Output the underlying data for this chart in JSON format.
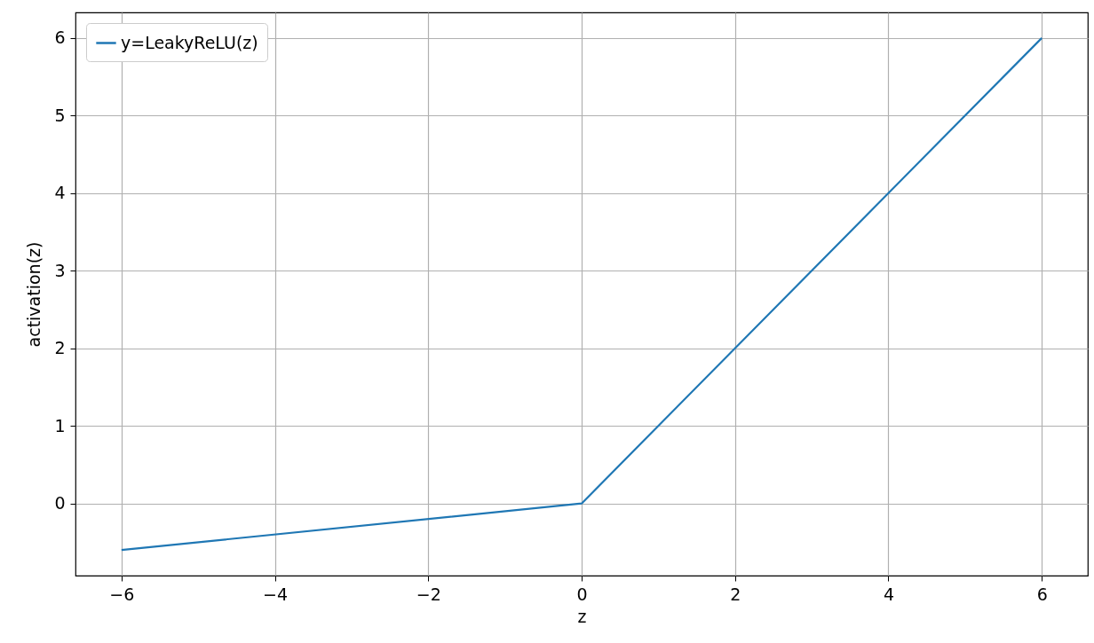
{
  "chart_data": {
    "type": "line",
    "xlabel": "z",
    "ylabel": "activation(z)",
    "x": [
      -6,
      0,
      6
    ],
    "series": [
      {
        "name": "y=LeakyReLU(z)",
        "color": "#1f77b4",
        "values": [
          -0.6,
          0,
          6
        ]
      }
    ],
    "xlim": [
      -6.6,
      6.6
    ],
    "ylim": [
      -0.93,
      6.33
    ],
    "xticks": [
      -6,
      -4,
      -2,
      0,
      2,
      4,
      6
    ],
    "yticks": [
      0,
      1,
      2,
      3,
      4,
      5,
      6
    ],
    "grid": true,
    "legend": "top left",
    "line_style": "solid",
    "marker": "none"
  }
}
